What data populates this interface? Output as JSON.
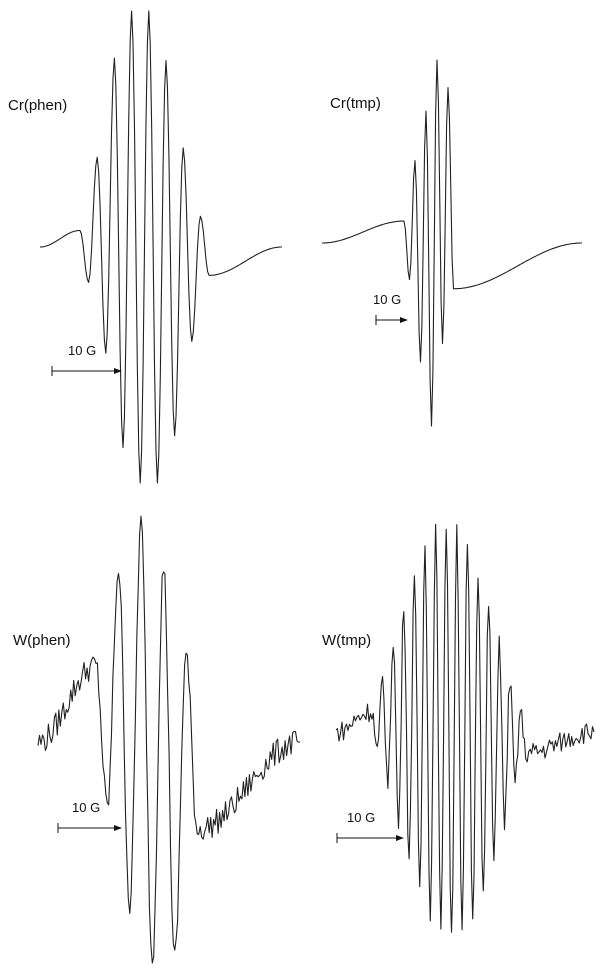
{
  "chart_data": [
    {
      "type": "line",
      "label": "Cr(phen)",
      "scale_bar": "10 G",
      "description": "EPR derivative spectrum, 11 hyperfine lines",
      "peaks": [
        0.07,
        0.38,
        0.8,
        1.0,
        1.0,
        0.79,
        0.42,
        0.13
      ],
      "troughs": [
        -0.15,
        -0.45,
        -0.85,
        -1.0,
        -1.0,
        -0.8,
        -0.4,
        -0.12
      ],
      "baseline": 0.0,
      "noise": 0.0
    },
    {
      "type": "line",
      "label": "Cr(tmp)",
      "scale_bar": "10 G",
      "description": "EPR derivative spectrum, narrow multiplet",
      "peaks": [
        0.12,
        0.45,
        0.72,
        1.0,
        0.85
      ],
      "troughs": [
        -0.2,
        -0.65,
        -1.0,
        -0.55,
        -0.25
      ],
      "baseline": 0.0,
      "noise": 0.0
    },
    {
      "type": "line",
      "label": "W(phen)",
      "scale_bar": "10 G",
      "description": "EPR derivative spectrum, 7 hyperfine lines, noisy baseline",
      "peaks": [
        0.35,
        0.8,
        1.0,
        0.8,
        0.4
      ],
      "troughs": [
        -0.3,
        -0.75,
        -1.0,
        -1.0,
        -0.4
      ],
      "baseline": 0.0,
      "noise": 0.06
    },
    {
      "type": "line",
      "label": "W(tmp)",
      "scale_bar": "10 G",
      "description": "EPR derivative spectrum, many-line multiplet, noisy baseline",
      "peaks": [
        0.1,
        0.25,
        0.45,
        0.62,
        0.78,
        0.9,
        0.97,
        1.0,
        0.97,
        0.9,
        0.78,
        0.62,
        0.45,
        0.25,
        0.1
      ],
      "troughs": [
        -0.1,
        -0.25,
        -0.45,
        -0.62,
        -0.78,
        -0.9,
        -0.97,
        -1.0,
        -0.97,
        -0.9,
        -0.78,
        -0.62,
        -0.45,
        -0.25,
        -0.1
      ],
      "baseline": 0.0,
      "noise": 0.05
    }
  ]
}
